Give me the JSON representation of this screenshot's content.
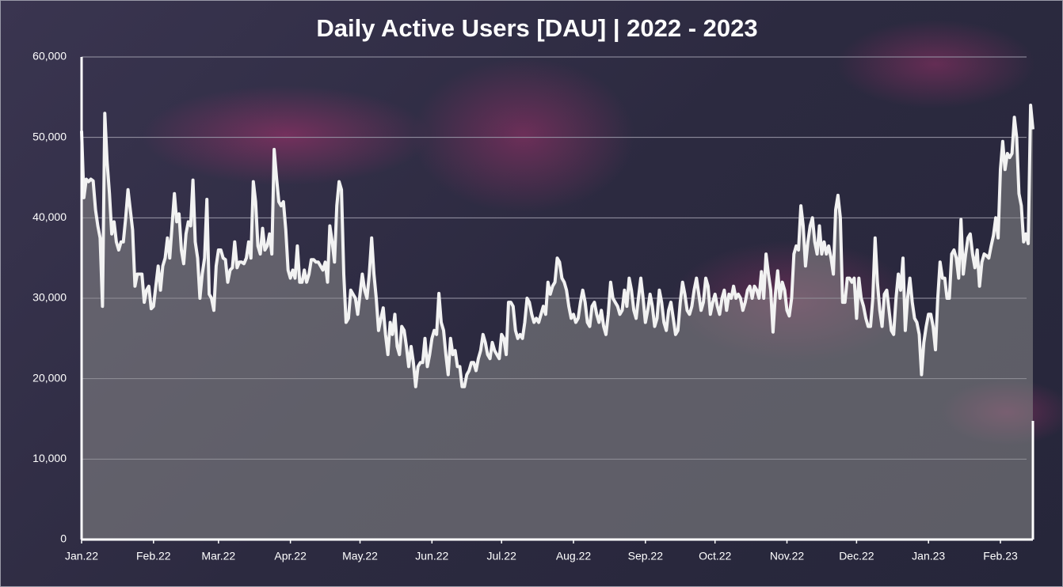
{
  "chart_data": {
    "type": "area-line",
    "title": "Daily Active Users [DAU] | 2022 - 2023",
    "color": "#f2f2f2",
    "fill_color": "#8a8a8a",
    "grid": true,
    "xlim": [
      0,
      410
    ],
    "xticks": [
      {
        "value": 0,
        "label": "Jan.22"
      },
      {
        "value": 31,
        "label": "Feb.22"
      },
      {
        "value": 59,
        "label": "Mar.22"
      },
      {
        "value": 90,
        "label": "Apr.22"
      },
      {
        "value": 120,
        "label": "May.22"
      },
      {
        "value": 151,
        "label": "Jun.22"
      },
      {
        "value": 181,
        "label": "Jul.22"
      },
      {
        "value": 212,
        "label": "Aug.22"
      },
      {
        "value": 243,
        "label": "Sep.22"
      },
      {
        "value": 273,
        "label": "Oct.22"
      },
      {
        "value": 304,
        "label": "Nov.22"
      },
      {
        "value": 334,
        "label": "Dec.22"
      },
      {
        "value": 365,
        "label": "Jan.23"
      },
      {
        "value": 396,
        "label": "Feb.23"
      }
    ],
    "ylim": [
      0,
      60000
    ],
    "yticks": [
      0,
      {
        "value": 10000,
        "label": "10,000"
      },
      {
        "value": 20000,
        "label": "20,000"
      },
      {
        "value": 30000,
        "label": "30,000"
      },
      {
        "value": 40000,
        "label": "40,000"
      },
      {
        "value": 50000,
        "label": "50,000"
      },
      {
        "value": 60000,
        "label": "60,000"
      }
    ],
    "values": [
      50800,
      42500,
      44800,
      44500,
      44800,
      44600,
      41000,
      39000,
      37500,
      29000,
      53000,
      47000,
      43000,
      38000,
      39500,
      37000,
      36000,
      37000,
      37000,
      40000,
      43500,
      41000,
      38500,
      31500,
      33000,
      33000,
      33000,
      29500,
      31000,
      31500,
      28700,
      29000,
      31500,
      34000,
      31000,
      34000,
      35000,
      37500,
      35000,
      39000,
      43000,
      39500,
      40500,
      36000,
      34300,
      38000,
      39500,
      39000,
      44700,
      37000,
      35000,
      30000,
      33000,
      35000,
      42300,
      30500,
      30000,
      28500,
      34000,
      36000,
      36000,
      35000,
      34800,
      32000,
      33500,
      33800,
      37000,
      33800,
      34500,
      34500,
      34300,
      35000,
      37000,
      35000,
      44500,
      42000,
      36500,
      35500,
      38700,
      36000,
      36500,
      38000,
      35500,
      48500,
      45000,
      42000,
      41500,
      42000,
      38500,
      33500,
      32500,
      33500,
      32500,
      36500,
      32000,
      32000,
      33500,
      32000,
      33000,
      34800,
      34800,
      34500,
      34500,
      34000,
      33500,
      34500,
      32000,
      39000,
      37000,
      34500,
      41500,
      44500,
      43500,
      33000,
      27000,
      27500,
      31000,
      30500,
      30000,
      28000,
      30500,
      33000,
      31000,
      30000,
      33000,
      37500,
      33000,
      30000,
      26000,
      27500,
      28800,
      25500,
      23000,
      27000,
      25500,
      28000,
      24000,
      23000,
      26500,
      26000,
      24000,
      21500,
      24000,
      22000,
      19000,
      21500,
      22000,
      22000,
      25000,
      21500,
      23000,
      25000,
      26000,
      25500,
      30600,
      27000,
      26000,
      23000,
      20500,
      25000,
      23000,
      23500,
      21500,
      21500,
      19000,
      19000,
      20500,
      21000,
      22000,
      22000,
      21000,
      22500,
      23500,
      25500,
      24500,
      23000,
      22500,
      24500,
      23500,
      23000,
      22500,
      25500,
      25000,
      23000,
      29500,
      29500,
      29000,
      26000,
      25000,
      25500,
      25000,
      27000,
      30000,
      29500,
      28000,
      27000,
      27500,
      27000,
      28000,
      29000,
      28000,
      32000,
      30500,
      31500,
      32000,
      35000,
      34500,
      32500,
      32000,
      31000,
      29000,
      27500,
      28000,
      27000,
      27500,
      29500,
      31000,
      29500,
      27000,
      26500,
      29000,
      29500,
      28000,
      27000,
      28500,
      26500,
      25500,
      28000,
      32000,
      30000,
      29500,
      29000,
      28000,
      28500,
      31000,
      29000,
      32500,
      31000,
      28500,
      27500,
      30000,
      32500,
      30000,
      27000,
      28500,
      30500,
      29000,
      26500,
      27500,
      31000,
      29500,
      27000,
      26000,
      28500,
      29500,
      27500,
      25500,
      26000,
      29500,
      32000,
      30500,
      28500,
      28000,
      29000,
      31000,
      32500,
      30500,
      28500,
      29500,
      32500,
      31500,
      28000,
      29500,
      30500,
      29000,
      28000,
      30000,
      31000,
      28500,
      30500,
      30000,
      31500,
      30000,
      30500,
      30000,
      28500,
      29500,
      31000,
      31500,
      30000,
      31500,
      31000,
      30000,
      33300,
      30000,
      35500,
      33000,
      31000,
      25800,
      30500,
      33400,
      30000,
      32000,
      31000,
      28500,
      27800,
      30000,
      35500,
      36500,
      36000,
      41500,
      39000,
      34000,
      37000,
      39000,
      40000,
      37000,
      35500,
      39000,
      35500,
      37000,
      35500,
      36500,
      35000,
      33000,
      41000,
      42800,
      40000,
      29500,
      29500,
      32500,
      32500,
      32000,
      32500,
      27500,
      32500,
      30000,
      29000,
      27500,
      26500,
      26500,
      30000,
      37500,
      32000,
      28500,
      26500,
      30500,
      31000,
      28500,
      26000,
      25500,
      30000,
      33000,
      31000,
      35000,
      26000,
      30000,
      32500,
      29500,
      27500,
      27000,
      25500,
      20500,
      24500,
      26500,
      28000,
      28000,
      26500,
      23600,
      30000,
      34500,
      32500,
      32500,
      30000,
      30000,
      35500,
      36000,
      35000,
      32500,
      39800,
      33000,
      35500,
      37500,
      38000,
      35500,
      33800,
      36000,
      31500,
      34500,
      35500,
      35300,
      35000,
      36500,
      37800,
      40000,
      37500,
      46000,
      49500,
      46000,
      48000,
      47500,
      48000,
      52500,
      50000,
      43000,
      41500,
      37000,
      38000,
      36800,
      54000,
      51000
    ]
  }
}
